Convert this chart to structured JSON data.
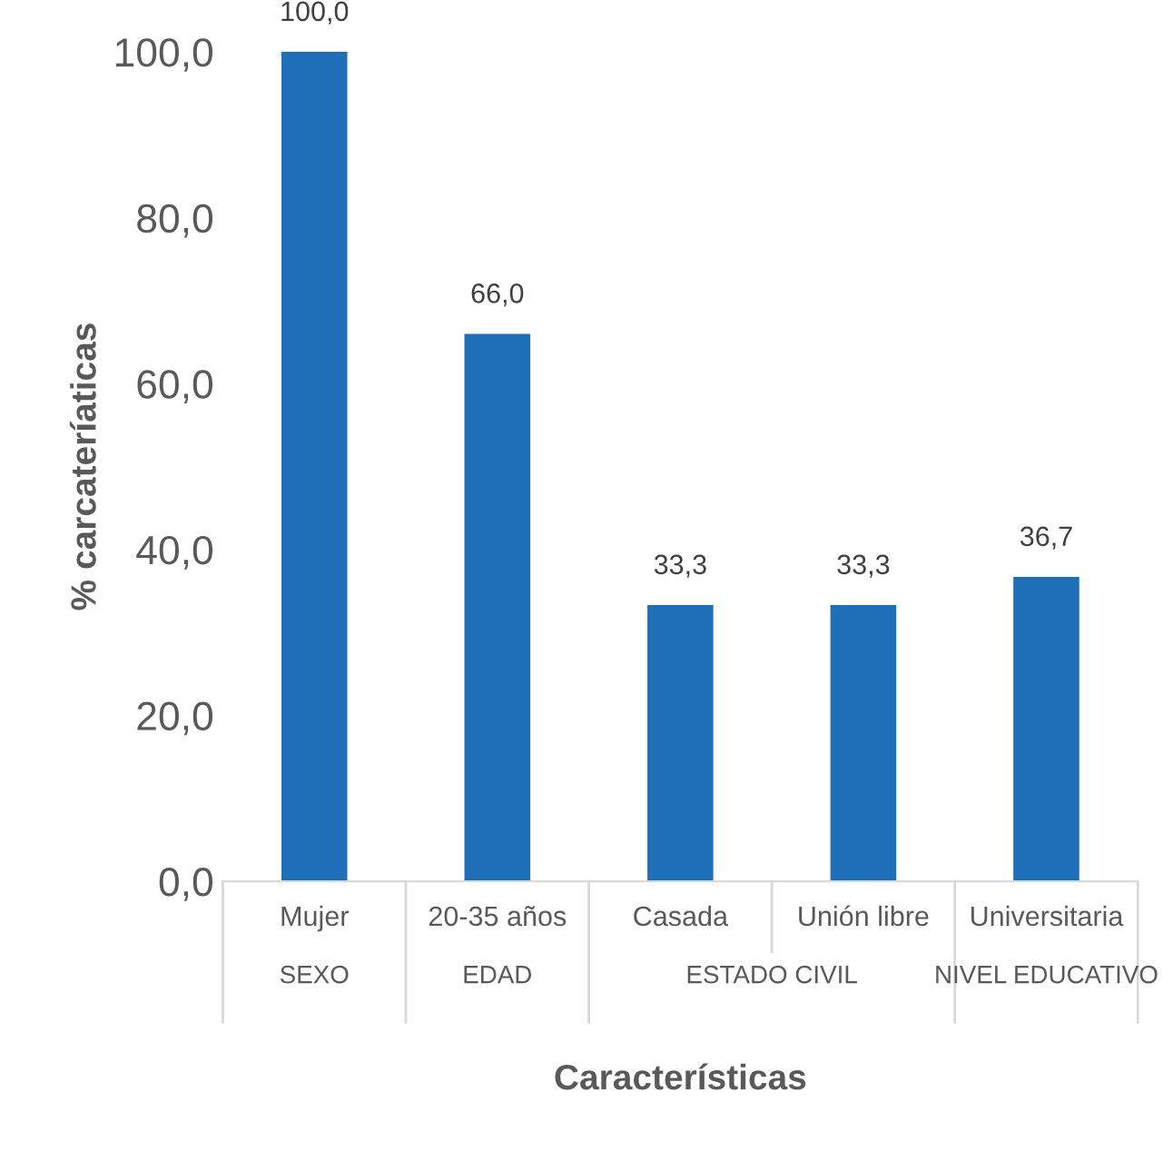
{
  "chart_data": {
    "type": "bar",
    "categories": [
      "Mujer",
      "20-35 años",
      "Casada",
      "Unión libre",
      "Universitaria"
    ],
    "values": [
      100.0,
      66.0,
      33.3,
      33.3,
      36.7
    ],
    "value_labels": [
      "100,0",
      "66,0",
      "33,3",
      "33,3",
      "36,7"
    ],
    "color": "#1f6fb8",
    "ylabel": "% carcateríaticas",
    "xlabel": "Características",
    "ylim": [
      0,
      100
    ],
    "yticks": [
      {
        "value": 0,
        "label": "0,0"
      },
      {
        "value": 20,
        "label": "20,0"
      },
      {
        "value": 40,
        "label": "40,0"
      },
      {
        "value": 60,
        "label": "60,0"
      },
      {
        "value": 80,
        "label": "80,0"
      },
      {
        "value": 100,
        "label": "100,0"
      }
    ],
    "annotations": [
      "SEXO",
      "EDAD",
      "ESTADO CIVIL",
      "NIVEL EDUCATIVO"
    ],
    "grid": false,
    "legend": false
  }
}
